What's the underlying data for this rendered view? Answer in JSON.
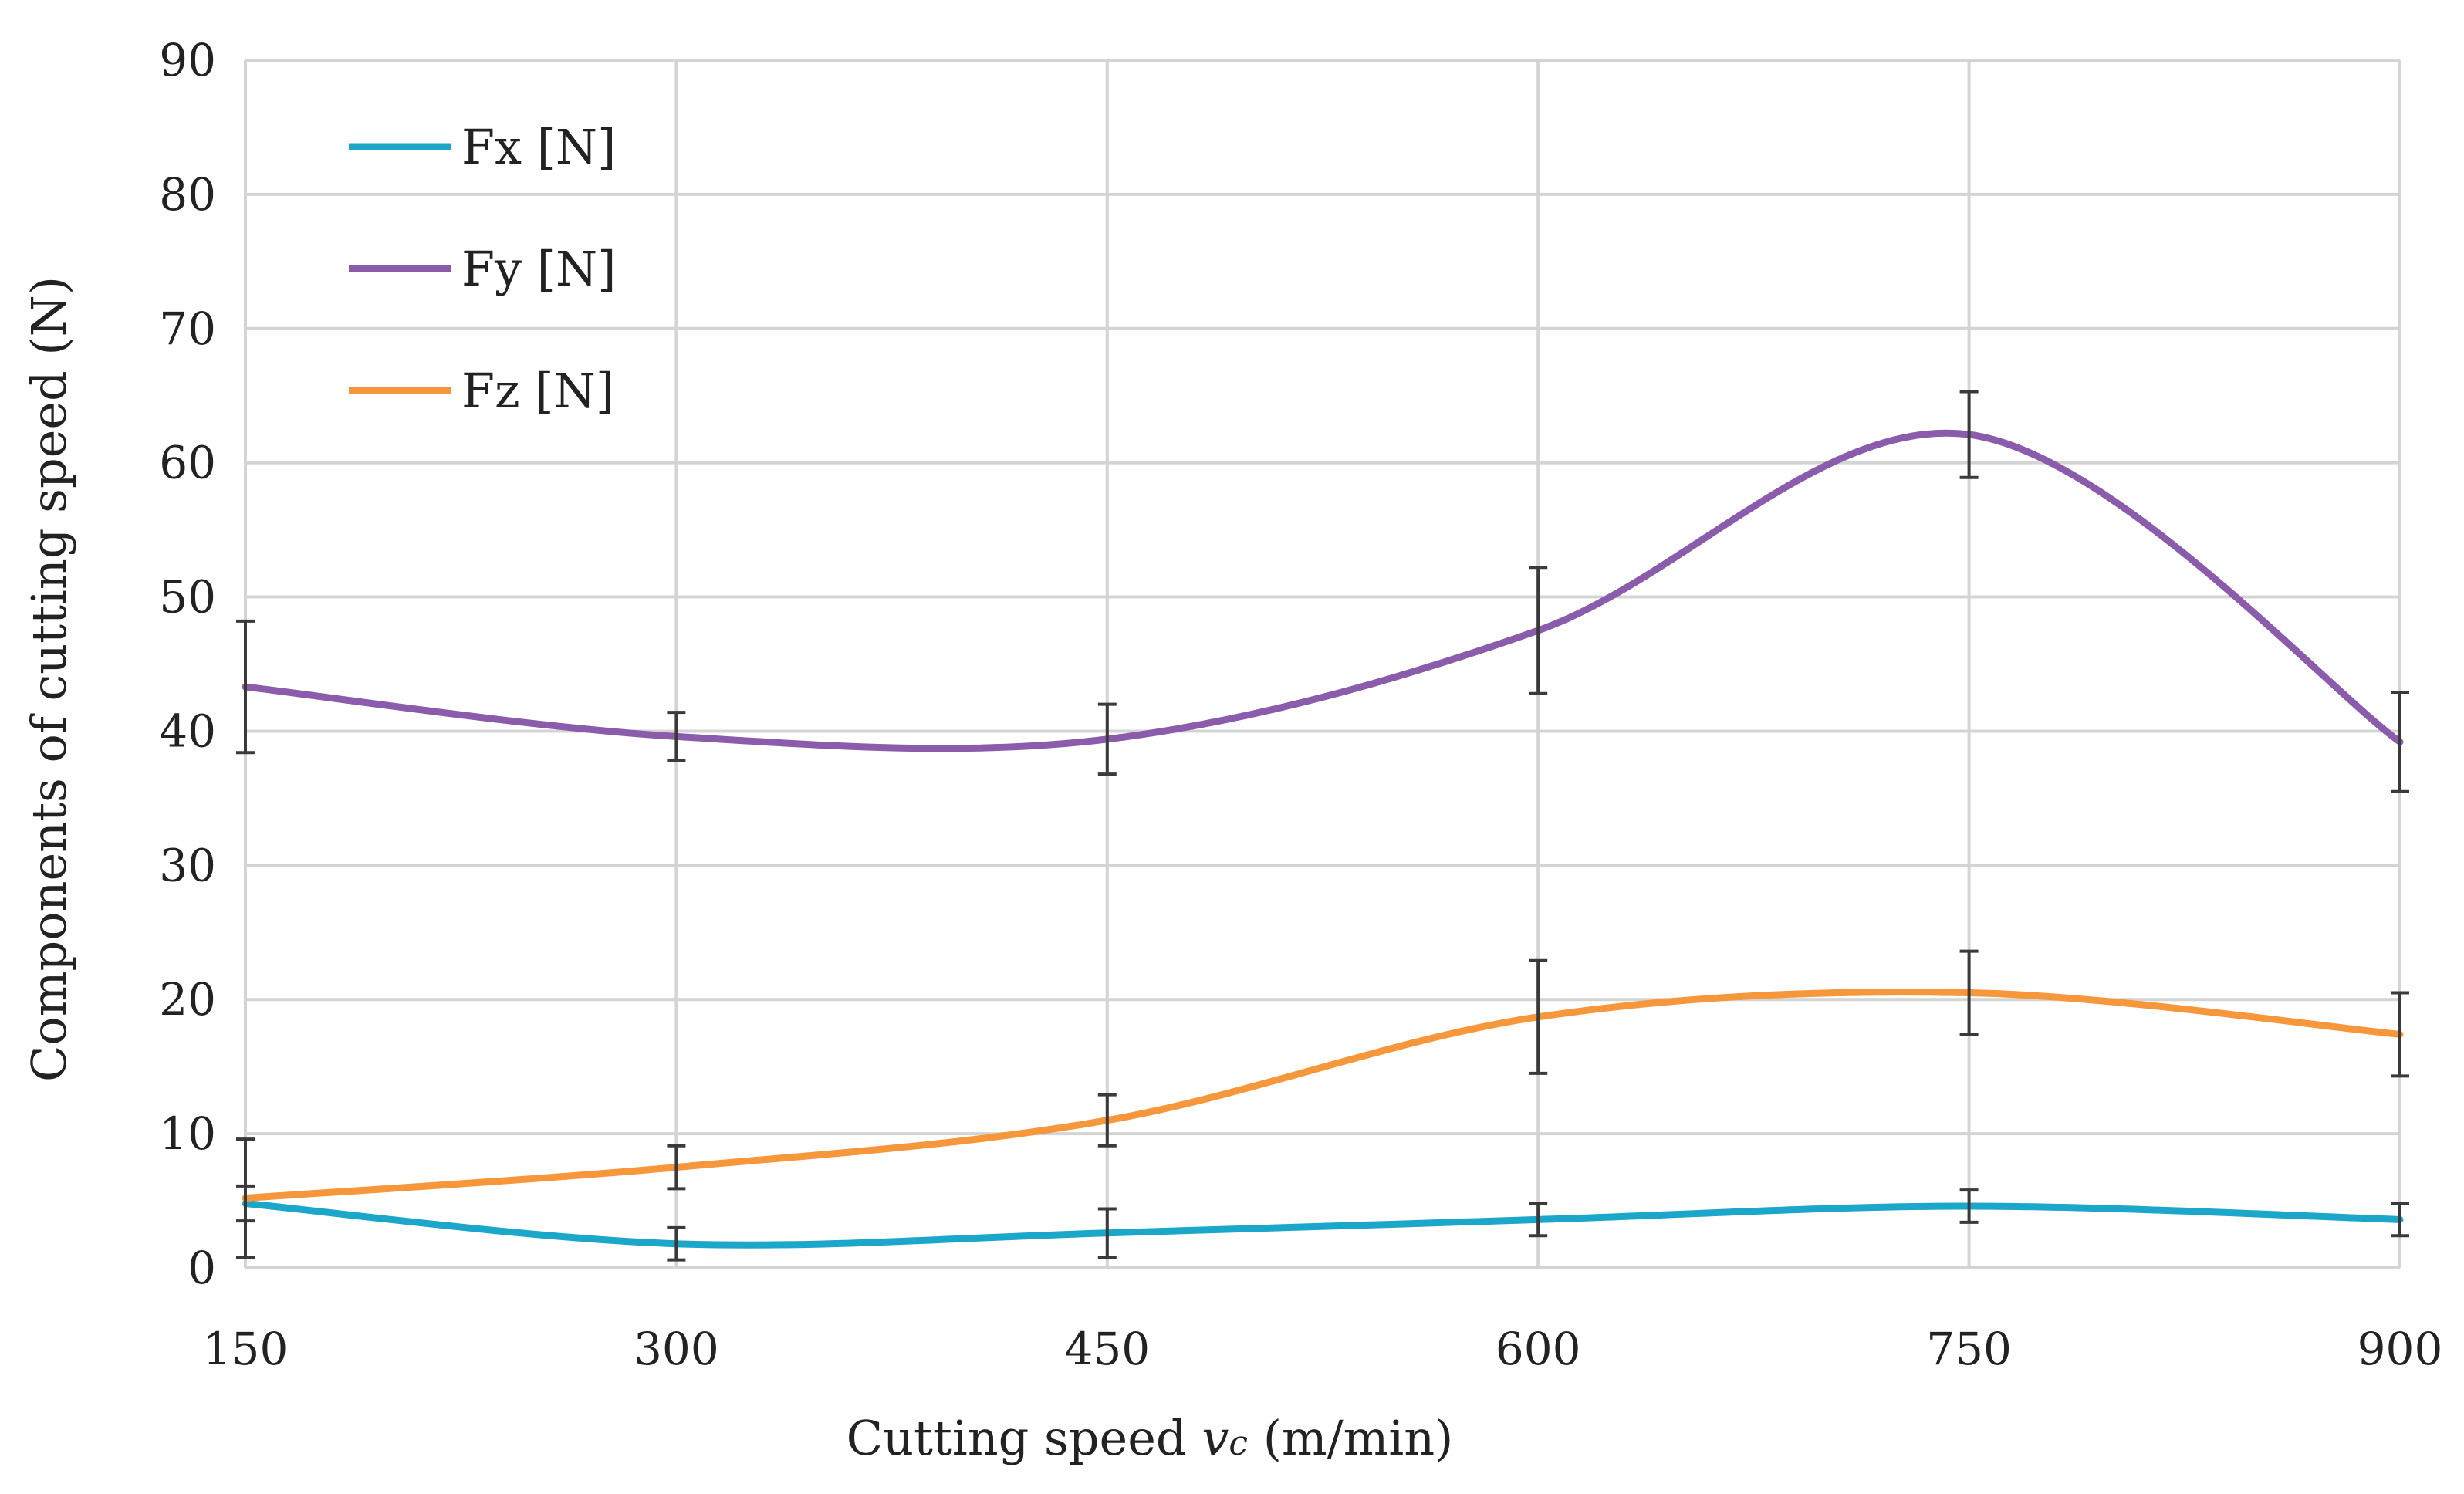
{
  "chart_data": {
    "type": "line",
    "title": "",
    "xlabel": {
      "prefix": "Cutting speed ",
      "symbol": "v",
      "subscript": "c",
      "suffix": " (m/min)"
    },
    "ylabel": "Components of cutting speed (N)",
    "x": [
      150,
      300,
      450,
      600,
      750,
      900
    ],
    "xticks": [
      "150",
      "300",
      "450",
      "600",
      "750",
      "900"
    ],
    "yticks": [
      "0",
      "10",
      "20",
      "30",
      "40",
      "50",
      "60",
      "70",
      "80",
      "90"
    ],
    "xlim": [
      150,
      900
    ],
    "ylim": [
      0,
      90
    ],
    "grid": true,
    "smooth": true,
    "legend_position": "top-left",
    "series": [
      {
        "name": "Fx [N]",
        "color": "#1ba7c9",
        "values": [
          4.8,
          1.8,
          2.6,
          3.6,
          4.6,
          3.6
        ],
        "errors": [
          1.3,
          1.2,
          1.8,
          1.2,
          1.2,
          1.2
        ]
      },
      {
        "name": "Fy [N]",
        "color": "#8a5cab",
        "values": [
          43.3,
          39.6,
          39.4,
          47.5,
          62.1,
          39.2
        ],
        "errors": [
          4.9,
          1.8,
          2.6,
          4.7,
          3.2,
          3.7
        ]
      },
      {
        "name": "Fz [N]",
        "color": "#f5973a",
        "values": [
          5.2,
          7.5,
          11.0,
          18.7,
          20.5,
          17.4
        ],
        "errors": [
          4.4,
          1.6,
          1.9,
          4.2,
          3.1,
          3.1
        ]
      }
    ]
  }
}
